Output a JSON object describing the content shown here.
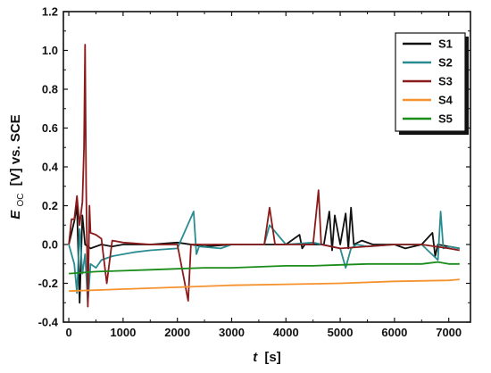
{
  "chart_data": {
    "type": "line",
    "xlabel_var": "t",
    "xlabel_unit": "[s]",
    "ylabel_var": "E",
    "ylabel_sub": "OC",
    "ylabel_unit": "[V] vs. SCE",
    "xlim": [
      -100,
      7400
    ],
    "ylim": [
      -0.4,
      1.2
    ],
    "xticks": [
      0,
      1000,
      2000,
      3000,
      4000,
      5000,
      6000,
      7000
    ],
    "yticks": [
      -0.4,
      -0.2,
      0.0,
      0.2,
      0.4,
      0.6,
      0.8,
      1.0,
      1.2
    ],
    "xtick_labels": [
      "0",
      "1000",
      "2000",
      "3000",
      "4000",
      "5000",
      "6000",
      "7000"
    ],
    "ytick_labels": [
      "-0.4",
      "-0.2",
      "0.0",
      "0.2",
      "0.4",
      "0.6",
      "0.8",
      "1.0",
      "1.2"
    ],
    "legend_position": "top-right",
    "series": [
      {
        "name": "S1",
        "color": "#111111",
        "x": [
          0,
          100,
          150,
          200,
          250,
          300,
          400,
          600,
          800,
          1000,
          1500,
          2000,
          2500,
          3000,
          3500,
          4000,
          4250,
          4300,
          4350,
          4500,
          4700,
          4800,
          4850,
          4900,
          5000,
          5100,
          5150,
          5200,
          5250,
          5400,
          5600,
          5800,
          6000,
          6200,
          6500,
          6700,
          6750,
          6800,
          7000,
          7200
        ],
        "y": [
          0.0,
          0.12,
          0.2,
          -0.3,
          0.15,
          0.0,
          -0.02,
          0.0,
          -0.01,
          0.0,
          0.0,
          0.01,
          -0.01,
          0.0,
          0.0,
          0.0,
          0.05,
          -0.02,
          0.0,
          0.0,
          0.0,
          0.17,
          -0.03,
          0.15,
          0.0,
          0.16,
          -0.02,
          0.19,
          0.0,
          0.02,
          0.0,
          0.0,
          0.0,
          -0.02,
          0.0,
          0.06,
          -0.06,
          0.0,
          -0.01,
          -0.02
        ]
      },
      {
        "name": "S2",
        "color": "#2a8c91",
        "x": [
          0,
          100,
          150,
          200,
          250,
          300,
          350,
          400,
          500,
          600,
          800,
          1000,
          1200,
          1500,
          2000,
          2300,
          2350,
          2400,
          2800,
          3000,
          3300,
          3600,
          3700,
          4000,
          4500,
          5000,
          5100,
          5200,
          5300,
          5500,
          6000,
          6500,
          6800,
          6850,
          6900,
          7000,
          7200
        ],
        "y": [
          0.0,
          -0.1,
          -0.25,
          0.08,
          -0.15,
          -0.05,
          -0.3,
          -0.1,
          -0.12,
          -0.08,
          -0.06,
          -0.05,
          -0.04,
          -0.03,
          -0.02,
          0.17,
          -0.05,
          -0.01,
          -0.02,
          0.0,
          0.0,
          0.0,
          0.1,
          0.0,
          0.01,
          -0.02,
          -0.12,
          -0.02,
          0.0,
          -0.01,
          0.0,
          0.0,
          -0.08,
          0.17,
          -0.02,
          -0.01,
          -0.02
        ]
      },
      {
        "name": "S3",
        "color": "#8b1a1a",
        "x": [
          0,
          50,
          100,
          150,
          200,
          250,
          280,
          300,
          320,
          350,
          380,
          400,
          500,
          600,
          700,
          800,
          1000,
          1500,
          2000,
          2200,
          2250,
          3000,
          3600,
          3700,
          3800,
          4000,
          4500,
          4600,
          4650,
          5000,
          6000,
          6500,
          7000,
          7200
        ],
        "y": [
          0.0,
          0.13,
          0.13,
          0.25,
          0.1,
          0.22,
          0.5,
          1.03,
          0.3,
          -0.32,
          0.2,
          0.06,
          0.05,
          0.03,
          -0.2,
          0.02,
          0.01,
          0.0,
          0.0,
          -0.29,
          0.0,
          0.0,
          0.0,
          0.19,
          0.0,
          0.0,
          0.0,
          0.28,
          0.0,
          -0.02,
          0.0,
          0.0,
          -0.02,
          -0.03
        ]
      },
      {
        "name": "S4",
        "color": "#f5922e",
        "x": [
          0,
          1000,
          2000,
          3000,
          4000,
          5000,
          6000,
          7000,
          7200
        ],
        "y": [
          -0.24,
          -0.23,
          -0.22,
          -0.21,
          -0.205,
          -0.2,
          -0.19,
          -0.185,
          -0.18
        ]
      },
      {
        "name": "S5",
        "color": "#1a8c1a",
        "x": [
          0,
          500,
          1000,
          1500,
          2000,
          2500,
          3000,
          3500,
          4000,
          4500,
          5000,
          5500,
          6000,
          6500,
          6800,
          7000,
          7200
        ],
        "y": [
          -0.15,
          -0.14,
          -0.135,
          -0.13,
          -0.125,
          -0.12,
          -0.12,
          -0.115,
          -0.11,
          -0.11,
          -0.105,
          -0.1,
          -0.1,
          -0.1,
          -0.09,
          -0.1,
          -0.1
        ]
      }
    ]
  }
}
